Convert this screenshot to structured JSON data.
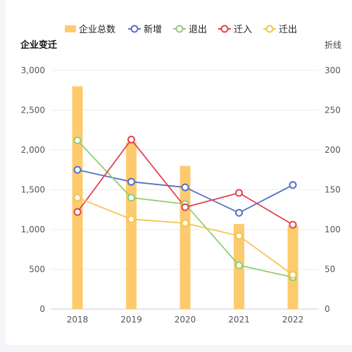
{
  "chart_data": {
    "type": "bar+line",
    "categories": [
      "2018",
      "2019",
      "2020",
      "2021",
      "2022"
    ],
    "left_axis": {
      "title": "企业变迁",
      "min": 0,
      "max": 3000,
      "ticks": [
        "0",
        "500",
        "1,000",
        "1,500",
        "2,000",
        "2,500",
        "3,000"
      ]
    },
    "right_axis": {
      "title": "折线",
      "min": 0,
      "max": 300,
      "ticks": [
        "0",
        "50",
        "100",
        "150",
        "200",
        "250",
        "300"
      ]
    },
    "bar_series": {
      "name": "企业总数",
      "values": [
        2800,
        2100,
        1800,
        1070,
        1050
      ],
      "color": "#FDCB6E"
    },
    "line_series": [
      {
        "name": "新增",
        "values": [
          175,
          160,
          153,
          121,
          156
        ],
        "color": "#5470C6"
      },
      {
        "name": "退出",
        "values": [
          212,
          140,
          132,
          55,
          40
        ],
        "color": "#91CC75"
      },
      {
        "name": "迁入",
        "values": [
          122,
          213,
          128,
          146,
          106
        ],
        "color": "#E2434E"
      },
      {
        "name": "迁出",
        "values": [
          140,
          113,
          108,
          92,
          43
        ],
        "color": "#F5C451"
      }
    ],
    "legend_position": "top-center",
    "grid": true
  }
}
